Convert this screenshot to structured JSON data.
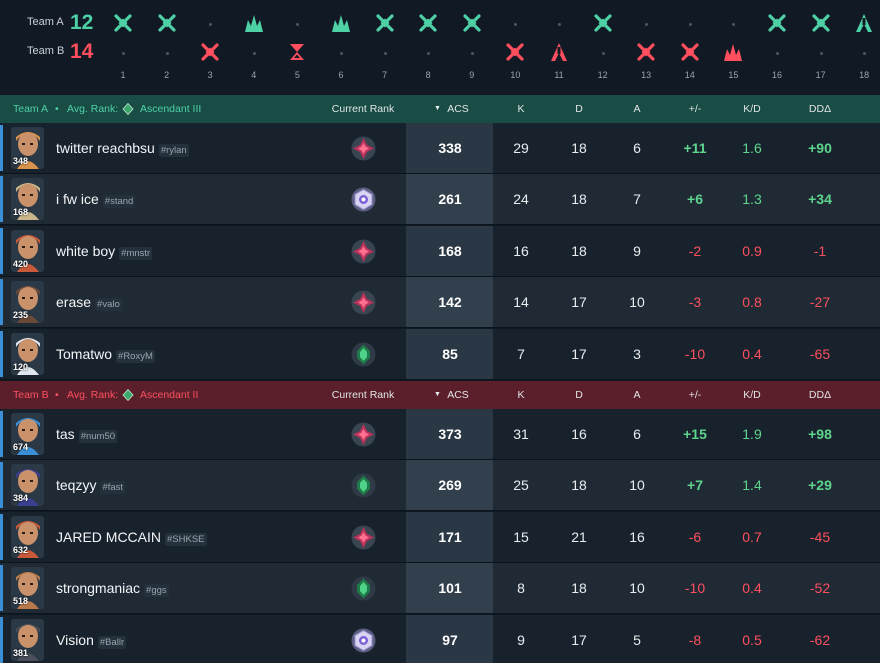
{
  "colors": {
    "team_a": "#4fd1a6",
    "team_b": "#ff4f5e",
    "team_a_header_bg": "#184c45",
    "team_b_header_bg": "#5a1f2b",
    "positive": "#5ed48d",
    "negative": "#ff4f5e"
  },
  "timeline": {
    "team_a_label": "Team A",
    "team_a_score": "12",
    "team_b_label": "Team B",
    "team_b_score": "14",
    "rounds": [
      {
        "n": "1",
        "winner": "A",
        "icon": "elimination-icon"
      },
      {
        "n": "2",
        "winner": "A",
        "icon": "elimination-icon"
      },
      {
        "n": "3",
        "winner": "B",
        "icon": "elimination-icon"
      },
      {
        "n": "4",
        "winner": "A",
        "icon": "spike-detonated-icon"
      },
      {
        "n": "5",
        "winner": "B",
        "icon": "timer-icon"
      },
      {
        "n": "6",
        "winner": "A",
        "icon": "spike-detonated-icon"
      },
      {
        "n": "7",
        "winner": "A",
        "icon": "elimination-icon"
      },
      {
        "n": "8",
        "winner": "A",
        "icon": "elimination-icon"
      },
      {
        "n": "9",
        "winner": "A",
        "icon": "elimination-icon"
      },
      {
        "n": "10",
        "winner": "B",
        "icon": "elimination-icon"
      },
      {
        "n": "11",
        "winner": "B",
        "icon": "spike-defused-icon"
      },
      {
        "n": "12",
        "winner": "A",
        "icon": "elimination-icon"
      },
      {
        "n": "13",
        "winner": "B",
        "icon": "elimination-icon"
      },
      {
        "n": "14",
        "winner": "B",
        "icon": "elimination-icon"
      },
      {
        "n": "15",
        "winner": "B",
        "icon": "spike-detonated-icon"
      },
      {
        "n": "16",
        "winner": "A",
        "icon": "elimination-icon"
      },
      {
        "n": "17",
        "winner": "A",
        "icon": "elimination-icon"
      },
      {
        "n": "18",
        "winner": "A",
        "icon": "spike-defused-icon"
      }
    ]
  },
  "columns": {
    "current_rank": "Current Rank",
    "acs": "ACS",
    "k": "K",
    "d": "D",
    "a": "A",
    "plus_minus": "+/-",
    "kd": "K/D",
    "dd": "DDΔ"
  },
  "teams": [
    {
      "name": "Team A",
      "separator": "•",
      "avg_rank_label": "Avg. Rank:",
      "avg_rank": "Ascendant III",
      "avg_rank_icon": "ascendant-rank-icon",
      "players": [
        {
          "name": "twitter reachbsu",
          "tag": "#rylan",
          "level": "348",
          "agent_icon": "agent-portrait-icon",
          "rank_icon": "immortal-rank-icon",
          "acs": "338",
          "k": "29",
          "d": "18",
          "a": "6",
          "pm": "+11",
          "kd": "1.6",
          "dd": "+90",
          "agent_color": "#d9924a"
        },
        {
          "name": "i fw ice",
          "tag": "#stand",
          "level": "168",
          "agent_icon": "agent-portrait-icon",
          "rank_icon": "radiant-rank-icon",
          "acs": "261",
          "k": "24",
          "d": "18",
          "a": "7",
          "pm": "+6",
          "kd": "1.3",
          "dd": "+34",
          "agent_color": "#c9b68a"
        },
        {
          "name": "white boy",
          "tag": "#mnstr",
          "level": "420",
          "agent_icon": "agent-portrait-icon",
          "rank_icon": "immortal-rank-icon",
          "acs": "168",
          "k": "16",
          "d": "18",
          "a": "9",
          "pm": "-2",
          "kd": "0.9",
          "dd": "-1",
          "agent_color": "#c85a3a"
        },
        {
          "name": "erase",
          "tag": "#valo",
          "level": "235",
          "agent_icon": "agent-portrait-icon",
          "rank_icon": "immortal-rank-icon",
          "acs": "142",
          "k": "14",
          "d": "17",
          "a": "10",
          "pm": "-3",
          "kd": "0.8",
          "dd": "-27",
          "agent_color": "#6b4a3a"
        },
        {
          "name": "Tomatwo",
          "tag": "#RoxyM",
          "level": "120",
          "agent_icon": "agent-portrait-icon",
          "rank_icon": "ascendant-rank-icon",
          "acs": "85",
          "k": "7",
          "d": "17",
          "a": "3",
          "pm": "-10",
          "kd": "0.4",
          "dd": "-65",
          "agent_color": "#dfe6f0"
        }
      ]
    },
    {
      "name": "Team B",
      "separator": "•",
      "avg_rank_label": "Avg. Rank:",
      "avg_rank": "Ascendant II",
      "avg_rank_icon": "ascendant-rank-icon",
      "players": [
        {
          "name": "tas",
          "tag": "#num50",
          "level": "674",
          "agent_icon": "agent-portrait-icon",
          "rank_icon": "immortal-rank-icon",
          "acs": "373",
          "k": "31",
          "d": "16",
          "a": "6",
          "pm": "+15",
          "kd": "1.9",
          "dd": "+98",
          "agent_color": "#3a8fd6"
        },
        {
          "name": "teqzyy",
          "tag": "#fast",
          "level": "384",
          "agent_icon": "agent-portrait-icon",
          "rank_icon": "ascendant-rank-icon",
          "acs": "269",
          "k": "25",
          "d": "18",
          "a": "10",
          "pm": "+7",
          "kd": "1.4",
          "dd": "+29",
          "agent_color": "#3a3f8f"
        },
        {
          "name": "JARED MCCAIN",
          "tag": "#SHKSE",
          "level": "632",
          "agent_icon": "agent-portrait-icon",
          "rank_icon": "immortal-rank-icon",
          "acs": "171",
          "k": "15",
          "d": "21",
          "a": "16",
          "pm": "-6",
          "kd": "0.7",
          "dd": "-45",
          "agent_color": "#c85a3a"
        },
        {
          "name": "strongmaniac",
          "tag": "#ggs",
          "level": "518",
          "agent_icon": "agent-portrait-icon",
          "rank_icon": "ascendant-rank-icon",
          "acs": "101",
          "k": "8",
          "d": "18",
          "a": "10",
          "pm": "-10",
          "kd": "0.4",
          "dd": "-52",
          "agent_color": "#b87a4a"
        },
        {
          "name": "Vision",
          "tag": "#Ballr",
          "level": "381",
          "agent_icon": "agent-portrait-icon",
          "rank_icon": "radiant-rank-icon",
          "acs": "97",
          "k": "9",
          "d": "17",
          "a": "5",
          "pm": "-8",
          "kd": "0.5",
          "dd": "-62",
          "agent_color": "#4a4f5a"
        }
      ]
    }
  ]
}
